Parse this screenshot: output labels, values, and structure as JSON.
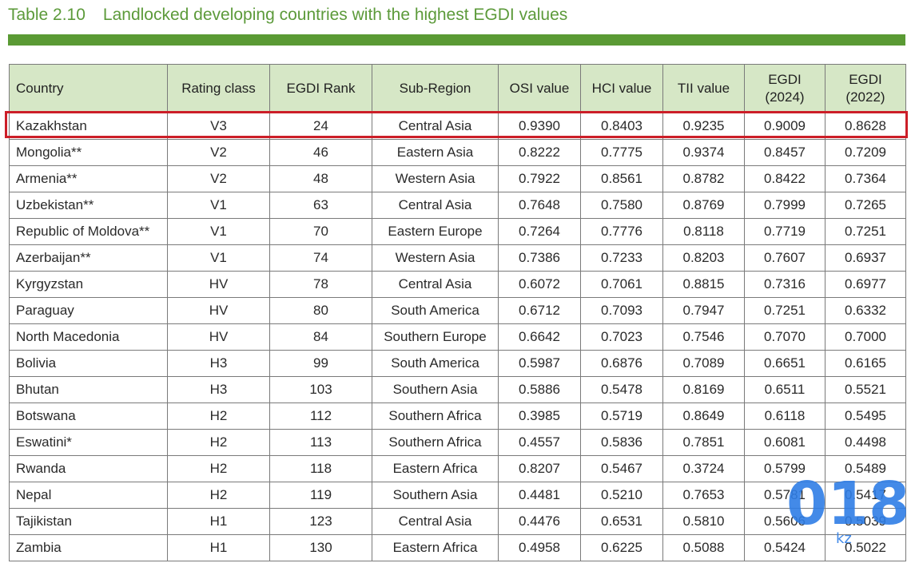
{
  "title": {
    "number": "Table 2.10",
    "text": "Landlocked developing countries with the highest EGDI values"
  },
  "columns": [
    "Country",
    "Rating class",
    "EGDI Rank",
    "Sub-Region",
    "OSI value",
    "HCI value",
    "TII value",
    "EGDI (2024)",
    "EGDI (2022)"
  ],
  "rows": [
    [
      "Kazakhstan",
      "V3",
      "24",
      "Central Asia",
      "0.9390",
      "0.8403",
      "0.9235",
      "0.9009",
      "0.8628"
    ],
    [
      "Mongolia**",
      "V2",
      "46",
      "Eastern Asia",
      "0.8222",
      "0.7775",
      "0.9374",
      "0.8457",
      "0.7209"
    ],
    [
      "Armenia**",
      "V2",
      "48",
      "Western Asia",
      "0.7922",
      "0.8561",
      "0.8782",
      "0.8422",
      "0.7364"
    ],
    [
      "Uzbekistan**",
      "V1",
      "63",
      "Central Asia",
      "0.7648",
      "0.7580",
      "0.8769",
      "0.7999",
      "0.7265"
    ],
    [
      "Republic of Moldova**",
      "V1",
      "70",
      "Eastern Europe",
      "0.7264",
      "0.7776",
      "0.8118",
      "0.7719",
      "0.7251"
    ],
    [
      "Azerbaijan**",
      "V1",
      "74",
      "Western Asia",
      "0.7386",
      "0.7233",
      "0.8203",
      "0.7607",
      "0.6937"
    ],
    [
      "Kyrgyzstan",
      "HV",
      "78",
      "Central Asia",
      "0.6072",
      "0.7061",
      "0.8815",
      "0.7316",
      "0.6977"
    ],
    [
      "Paraguay",
      "HV",
      "80",
      "South America",
      "0.6712",
      "0.7093",
      "0.7947",
      "0.7251",
      "0.6332"
    ],
    [
      "North Macedonia",
      "HV",
      "84",
      "Southern Europe",
      "0.6642",
      "0.7023",
      "0.7546",
      "0.7070",
      "0.7000"
    ],
    [
      "Bolivia",
      "H3",
      "99",
      "South America",
      "0.5987",
      "0.6876",
      "0.7089",
      "0.6651",
      "0.6165"
    ],
    [
      "Bhutan",
      "H3",
      "103",
      "Southern Asia",
      "0.5886",
      "0.5478",
      "0.8169",
      "0.6511",
      "0.5521"
    ],
    [
      "Botswana",
      "H2",
      "112",
      "Southern Africa",
      "0.3985",
      "0.5719",
      "0.8649",
      "0.6118",
      "0.5495"
    ],
    [
      "Eswatini*",
      "H2",
      "113",
      "Southern Africa",
      "0.4557",
      "0.5836",
      "0.7851",
      "0.6081",
      "0.4498"
    ],
    [
      "Rwanda",
      "H2",
      "118",
      "Eastern Africa",
      "0.8207",
      "0.5467",
      "0.3724",
      "0.5799",
      "0.5489"
    ],
    [
      "Nepal",
      "H2",
      "119",
      "Southern Asia",
      "0.4481",
      "0.5210",
      "0.7653",
      "0.5781",
      "0.5417"
    ],
    [
      "Tajikistan",
      "H1",
      "123",
      "Central Asia",
      "0.4476",
      "0.6531",
      "0.5810",
      "0.5606",
      "0.5039"
    ],
    [
      "Zambia",
      "H1",
      "130",
      "Eastern Africa",
      "0.4958",
      "0.6225",
      "0.5088",
      "0.5424",
      "0.5022"
    ]
  ],
  "highlighted_row": "Kazakhstan",
  "colors": {
    "title": "#5c9a3a",
    "bar": "#5a9a34",
    "header_bg": "#d6e7c6",
    "highlight": "#cc1e28",
    "watermark": "#2f7de6"
  },
  "watermark": {
    "text": "018",
    "subtext": "kz"
  }
}
